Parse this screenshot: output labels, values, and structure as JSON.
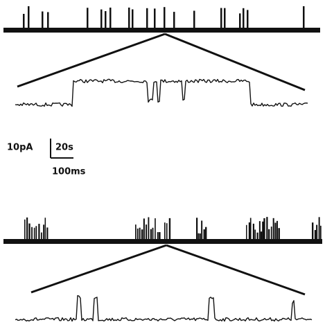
{
  "scale_bar": {
    "current": "10pA",
    "slow_time": "20s",
    "fast_time": "100ms"
  }
}
